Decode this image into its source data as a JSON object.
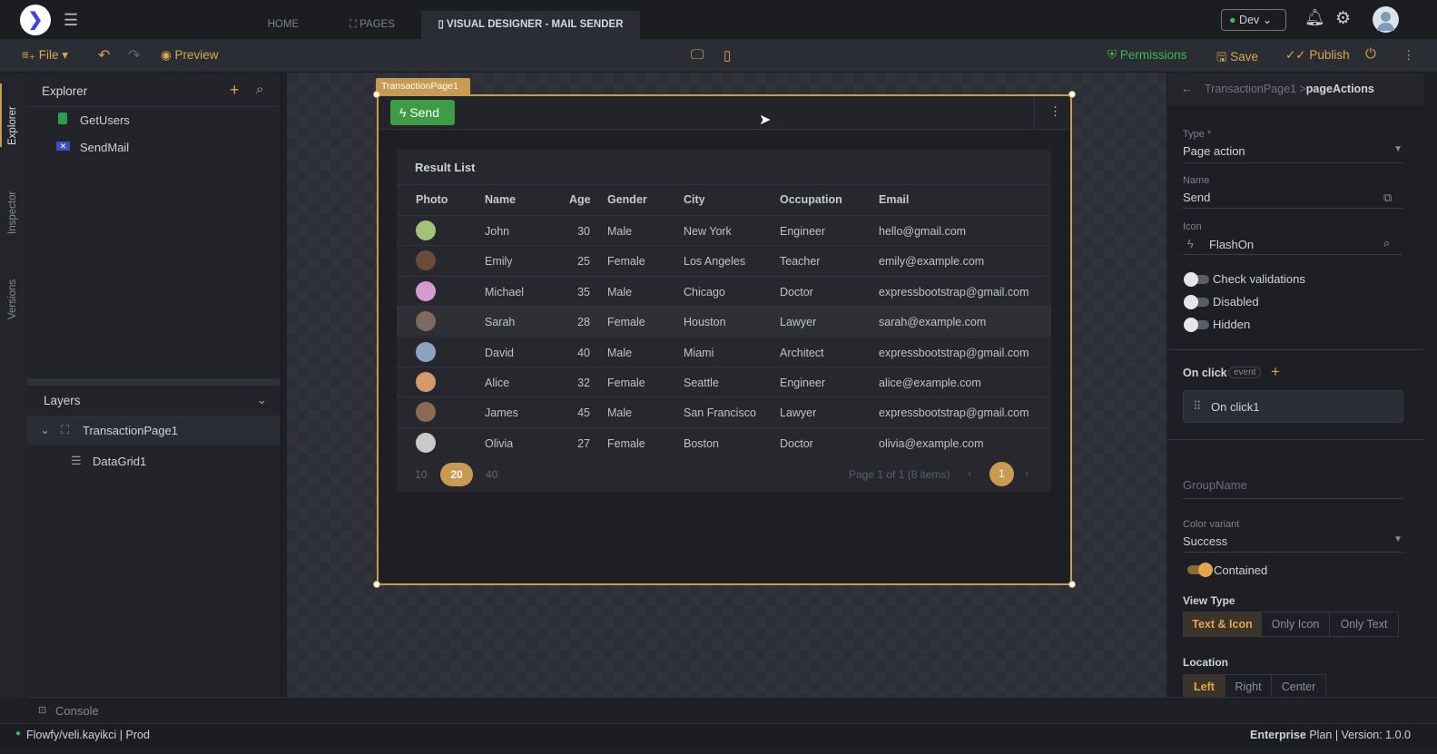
{
  "topbar": {
    "tabs": [
      {
        "label": "HOME"
      },
      {
        "label": "PAGES"
      },
      {
        "label": "VISUAL DESIGNER - MAIL SENDER"
      }
    ],
    "env": "Dev",
    "env_color": "#3fb950"
  },
  "toolbar": {
    "file": "File",
    "preview": "Preview",
    "permissions": "Permissions",
    "save": "Save",
    "publish": "Publish"
  },
  "leftstrip": {
    "explorer": "Explorer",
    "inspector": "Inspector",
    "versions": "Versions"
  },
  "explorer": {
    "title": "Explorer",
    "items": [
      {
        "label": "GetUsers",
        "icon": "sheet-icon"
      },
      {
        "label": "SendMail",
        "icon": "mail-icon"
      }
    ]
  },
  "layers": {
    "title": "Layers",
    "items": [
      {
        "label": "TransactionPage1"
      },
      {
        "label": "DataGrid1"
      }
    ]
  },
  "canvas": {
    "page_tag": "TransactionPage1",
    "send_button": "Send",
    "send_color": "#3d9c45",
    "grid": {
      "title": "Result List",
      "columns": [
        "Photo",
        "Name",
        "Age",
        "Gender",
        "City",
        "Occupation",
        "Email"
      ],
      "rows": [
        [
          "John",
          "30",
          "Male",
          "New York",
          "Engineer",
          "hello@gmail.com"
        ],
        [
          "Emily",
          "25",
          "Female",
          "Los Angeles",
          "Teacher",
          "emily@example.com"
        ],
        [
          "Michael",
          "35",
          "Male",
          "Chicago",
          "Doctor",
          "expressbootstrap@gmail.com"
        ],
        [
          "Sarah",
          "28",
          "Female",
          "Houston",
          "Lawyer",
          "sarah@example.com"
        ],
        [
          "David",
          "40",
          "Male",
          "Miami",
          "Architect",
          "expressbootstrap@gmail.com"
        ],
        [
          "Alice",
          "32",
          "Female",
          "Seattle",
          "Engineer",
          "alice@example.com"
        ],
        [
          "James",
          "45",
          "Male",
          "San Francisco",
          "Lawyer",
          "expressbootstrap@gmail.com"
        ],
        [
          "Olivia",
          "27",
          "Female",
          "Boston",
          "Doctor",
          "olivia@example.com"
        ]
      ],
      "page_sizes": [
        "10",
        "20",
        "40"
      ],
      "selected_page_size": "20",
      "page_info": "Page 1 of 1 (8 items)",
      "current_page": "1"
    }
  },
  "inspector": {
    "breadcrumb_parent": "TransactionPage1 >",
    "breadcrumb_current": "pageActions",
    "type_label": "Type *",
    "type_value": "Page action",
    "name_label": "Name",
    "name_value": "Send",
    "icon_label": "Icon",
    "icon_value": "FlashOn",
    "check_validations": "Check validations",
    "disabled": "Disabled",
    "hidden": "Hidden",
    "onclick_label": "On click",
    "event_badge": "event",
    "onclick_item": "On click1",
    "groupname_placeholder": "GroupName",
    "color_label": "Color variant",
    "color_value": "Success",
    "contained": "Contained",
    "view_type_label": "View Type",
    "view_types": [
      "Text & Icon",
      "Only Icon",
      "Only Text"
    ],
    "location_label": "Location",
    "locations": [
      "Left",
      "Right",
      "Center"
    ]
  },
  "console": {
    "label": "Console"
  },
  "status": {
    "left": "Flowfy/veli.kayikci | Prod",
    "plan_bold": "Enterprise",
    "plan_rest": "Plan | Version: 1.0.0"
  },
  "accent": "#d9a54e"
}
